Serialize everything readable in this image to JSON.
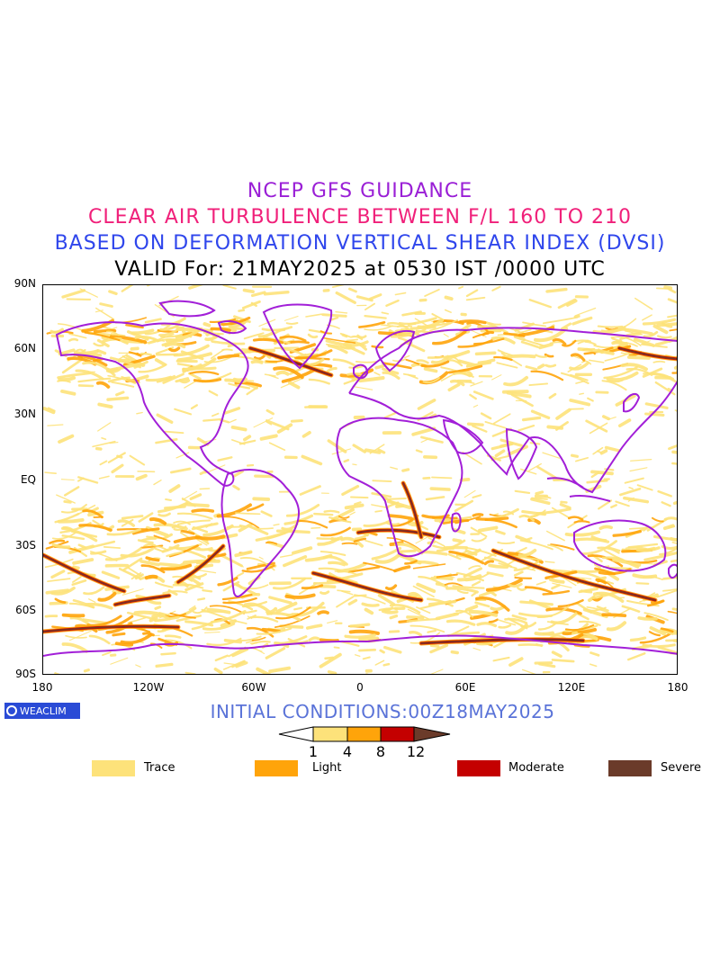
{
  "title": {
    "line1": "NCEP GFS GUIDANCE",
    "line2": "CLEAR AIR TURBULENCE BETWEEN F/L 160 TO 210",
    "line3": "BASED ON DEFORMATION VERTICAL SHEAR INDEX (DVSI)",
    "line4": "VALID For: 21MAY2025 at 0530 IST /0000 UTC"
  },
  "map": {
    "lat_labels": [
      "90N",
      "60N",
      "30N",
      "EQ",
      "30S",
      "60S",
      "90S"
    ],
    "lon_labels": [
      "180",
      "120W",
      "60W",
      "0",
      "60E",
      "120E",
      "180"
    ],
    "colors": {
      "boundary": "#a21fd8",
      "trace": "#fde27a",
      "light": "#ffa40a",
      "moderate": "#c40000",
      "severe": "#6b3b2a"
    }
  },
  "logo": {
    "text": "WEACLIM"
  },
  "initial_conditions": "INITIAL CONDITIONS:00Z18MAY2025",
  "colorbar": {
    "ticks": [
      "1",
      "4",
      "8",
      "12"
    ],
    "colors": [
      "#fde27a",
      "#ffa40a",
      "#c40000",
      "#6b3b2a"
    ]
  },
  "legend": [
    {
      "label": "Trace",
      "color": "#fde27a"
    },
    {
      "label": "Light",
      "color": "#ffa40a"
    },
    {
      "label": "Moderate",
      "color": "#c40000"
    },
    {
      "label": "Severe",
      "color": "#6b3b2a"
    }
  ]
}
